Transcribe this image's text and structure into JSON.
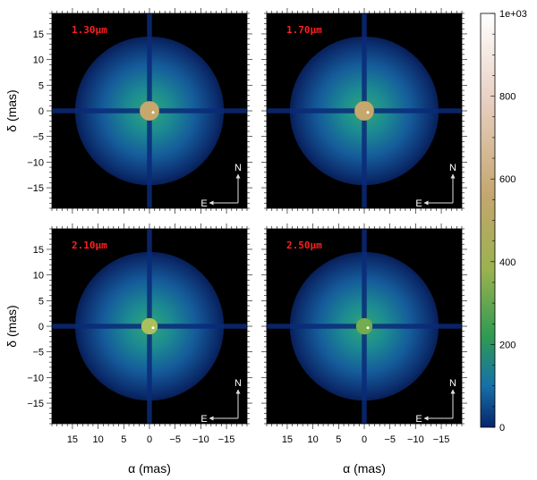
{
  "chart_data": {
    "type": "heatmap",
    "panels": [
      {
        "label": "1.30μm",
        "disk_color": "#c6a86c",
        "disk_radius_mas": 1.9
      },
      {
        "label": "1.70μm",
        "disk_color": "#c6a86c",
        "disk_radius_mas": 1.9
      },
      {
        "label": "2.10μm",
        "disk_color": "#a9c05c",
        "disk_radius_mas": 1.6
      },
      {
        "label": "2.50μm",
        "disk_color": "#73ad4f",
        "disk_radius_mas": 1.6
      }
    ],
    "envelope_radius_mas": 14.5,
    "xlabel": "α (mas)",
    "ylabel": "δ (mas)",
    "xlim": [
      19,
      -19
    ],
    "ylim": [
      -19,
      19
    ],
    "x_ticks": [
      15,
      10,
      5,
      0,
      -5,
      -10,
      -15
    ],
    "y_ticks": [
      15,
      10,
      5,
      0,
      -5,
      -10,
      -15
    ],
    "compass": {
      "north": "N",
      "east": "E"
    },
    "colorbar": {
      "ticks": [
        0,
        200,
        400,
        600,
        800
      ],
      "top_label": "1e+03",
      "range": [
        0,
        1000
      ],
      "colors": [
        "#07256b",
        "#1670a8",
        "#2f9a52",
        "#9ab24f",
        "#c4a66f",
        "#e9d2c6",
        "#ffffff"
      ]
    }
  }
}
